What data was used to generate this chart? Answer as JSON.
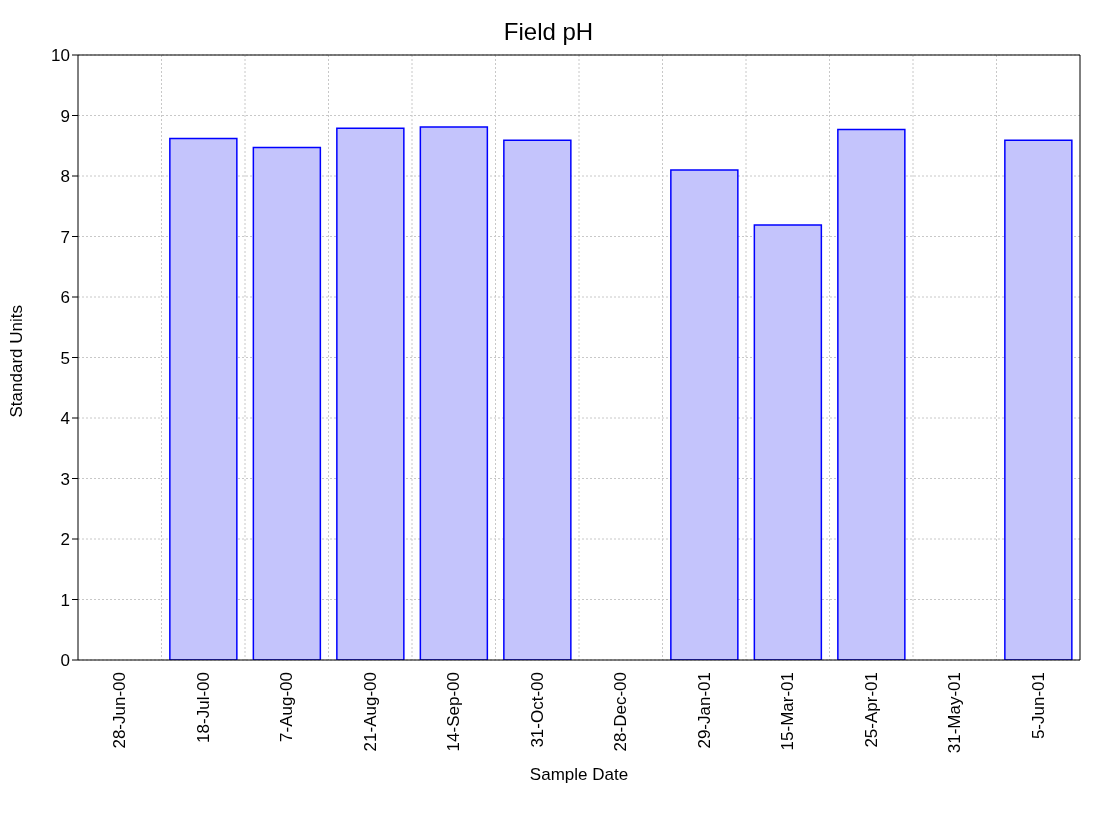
{
  "chart_data": {
    "type": "bar",
    "title": "Field pH",
    "xlabel": "Sample Date",
    "ylabel": "Standard Units",
    "categories": [
      "28-Jun-00",
      "18-Jul-00",
      "7-Aug-00",
      "21-Aug-00",
      "14-Sep-00",
      "31-Oct-00",
      "28-Dec-00",
      "29-Jan-01",
      "15-Mar-01",
      "25-Apr-01",
      "31-May-01",
      "5-Jun-01"
    ],
    "values": [
      null,
      8.62,
      8.47,
      8.79,
      8.81,
      8.59,
      null,
      8.1,
      7.19,
      8.77,
      null,
      8.59
    ],
    "color": "#c4c4fc",
    "ylim": [
      0,
      10
    ],
    "yticks": [
      0,
      1,
      2,
      3,
      4,
      5,
      6,
      7,
      8,
      9,
      10
    ],
    "grid": true
  }
}
